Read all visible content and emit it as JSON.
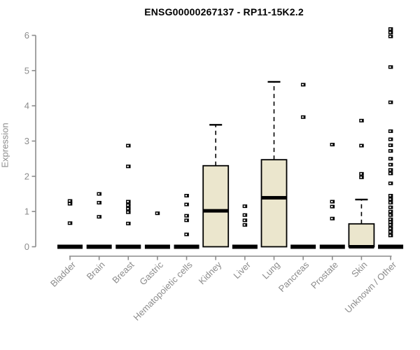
{
  "chart_data": {
    "type": "boxplot",
    "title": "ENSG00000267137 - RP11-15K2.2",
    "ylabel": "Expression",
    "ylim": [
      0,
      6
    ],
    "yticks": [
      0,
      1,
      2,
      3,
      4,
      5,
      6
    ],
    "grid": false,
    "legend": "none",
    "colors": {
      "box_fill": "#ebe6cd",
      "box_stroke": "#000000",
      "axis_line": "#8c8c8c",
      "tick_label": "#8c8c8c",
      "title_text": "#000000",
      "outlier": "#000000"
    },
    "categories": [
      "Bladder",
      "Brain",
      "Breast",
      "Gastric",
      "Hematopoietic cells",
      "Kidney",
      "Liver",
      "Lung",
      "Pancreas",
      "Prostate",
      "Skin",
      "Unknown / Other"
    ],
    "series": [
      {
        "category": "Bladder",
        "q1": 0,
        "median": 0,
        "q3": 0,
        "whisker_low": 0,
        "whisker_high": 0,
        "outliers": [
          1.3,
          1.22,
          0.67
        ]
      },
      {
        "category": "Brain",
        "q1": 0,
        "median": 0,
        "q3": 0,
        "whisker_low": 0,
        "whisker_high": 0,
        "outliers": [
          1.5,
          1.25,
          0.85
        ]
      },
      {
        "category": "Breast",
        "q1": 0,
        "median": 0,
        "q3": 0,
        "whisker_low": 0,
        "whisker_high": 0,
        "outliers": [
          2.87,
          2.28,
          1.28,
          1.18,
          1.08,
          0.98,
          0.66
        ]
      },
      {
        "category": "Gastric",
        "q1": 0,
        "median": 0,
        "q3": 0,
        "whisker_low": 0,
        "whisker_high": 0,
        "outliers": [
          0.95
        ]
      },
      {
        "category": "Hematopoietic cells",
        "q1": 0,
        "median": 0,
        "q3": 0,
        "whisker_low": 0,
        "whisker_high": 0,
        "outliers": [
          1.45,
          1.2,
          0.88,
          0.75,
          0.35
        ]
      },
      {
        "category": "Kidney",
        "q1": 0,
        "median": 1.02,
        "q3": 2.3,
        "whisker_low": 0,
        "whisker_high": 3.46,
        "outliers": []
      },
      {
        "category": "Liver",
        "q1": 0,
        "median": 0,
        "q3": 0,
        "whisker_low": 0,
        "whisker_high": 0,
        "outliers": [
          1.15,
          0.9,
          0.75,
          0.62
        ]
      },
      {
        "category": "Lung",
        "q1": 0,
        "median": 1.39,
        "q3": 2.47,
        "whisker_low": 0,
        "whisker_high": 4.68,
        "outliers": []
      },
      {
        "category": "Pancreas",
        "q1": 0,
        "median": 0,
        "q3": 0,
        "whisker_low": 0,
        "whisker_high": 0,
        "outliers": [
          4.6,
          3.68
        ]
      },
      {
        "category": "Prostate",
        "q1": 0,
        "median": 0,
        "q3": 0,
        "whisker_low": 0,
        "whisker_high": 0,
        "outliers": [
          2.9,
          1.28,
          1.14,
          0.8
        ]
      },
      {
        "category": "Skin",
        "q1": 0,
        "median": 0,
        "q3": 0.65,
        "whisker_low": 0,
        "whisker_high": 1.34,
        "outliers": [
          3.58,
          2.87,
          2.07,
          1.97
        ]
      },
      {
        "category": "Unknown / Other",
        "q1": 0,
        "median": 0,
        "q3": 0,
        "whisker_low": 0,
        "whisker_high": 0,
        "outliers": [
          6.18,
          6.08,
          5.97,
          5.1,
          4.1,
          3.28,
          3.05,
          2.88,
          2.72,
          2.5,
          2.33,
          2.18,
          2.08,
          1.8,
          1.45,
          1.35,
          1.25,
          1.12,
          1.0,
          0.9,
          0.78,
          0.7,
          0.62,
          0.52,
          0.42,
          0.32
        ]
      }
    ]
  }
}
